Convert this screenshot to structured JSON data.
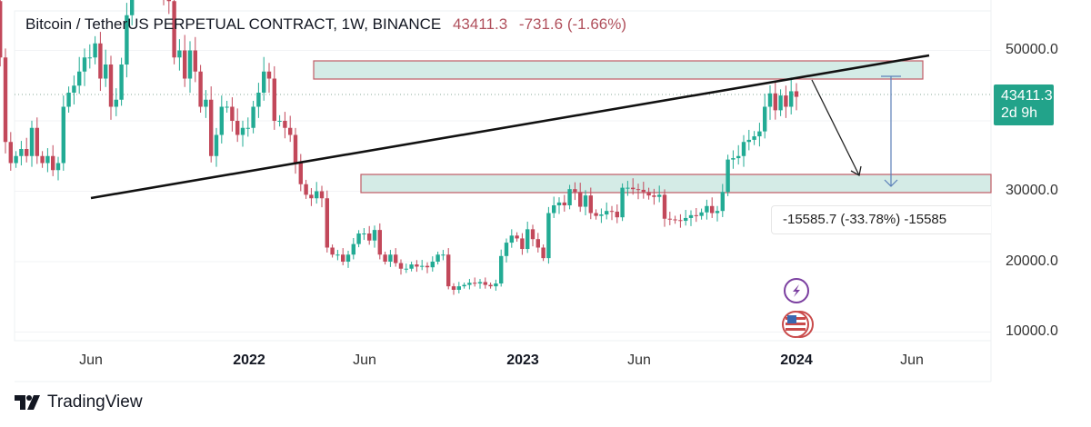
{
  "header": {
    "symbol": "Bitcoin / TetherUS PERPETUAL CONTRACT, 1W, BINANCE",
    "price": "43411.3",
    "change": "-731.6 (-1.66%)"
  },
  "price_badge": {
    "price": "43411.3",
    "countdown": "2d 9h"
  },
  "measure_label": "-15585.7 (-33.78%) -15585",
  "brand": "TradingView",
  "icons": [
    "lightning-event-icon",
    "us-flag-economic-event-icon"
  ],
  "colors": {
    "up": "#22ab94",
    "down": "#c2485a",
    "zone_fill": "#d4ebe6",
    "zone_border": "#c05a64"
  },
  "chart_data": {
    "type": "candlestick",
    "title": "Bitcoin / TetherUS PERPETUAL CONTRACT, 1W, BINANCE",
    "interval": "1W",
    "y_ticks": [
      "50000.0",
      "30000.0",
      "20000.0",
      "10000.0"
    ],
    "x_ticks": [
      {
        "label": "Jun",
        "bold": false
      },
      {
        "label": "2022",
        "bold": true
      },
      {
        "label": "Jun",
        "bold": false
      },
      {
        "label": "2023",
        "bold": true
      },
      {
        "label": "Jun",
        "bold": false
      },
      {
        "label": "2024",
        "bold": true
      },
      {
        "label": "Jun",
        "bold": false
      }
    ],
    "ylim": [
      5000,
      57000
    ],
    "first_open": 50000,
    "weekly_closes": [
      51000,
      61000,
      58000,
      55000,
      57000,
      59000,
      60000,
      56000,
      49000,
      50000,
      58000,
      57000,
      49000,
      37000,
      34000,
      35000,
      36000,
      35000,
      39000,
      35000,
      34000,
      35000,
      33000,
      34000,
      42000,
      44000,
      45000,
      47000,
      49000,
      49000,
      51000,
      46000,
      48000,
      42000,
      43000,
      48000,
      55000,
      60000,
      61000,
      62000,
      61000,
      65000,
      60000,
      59000,
      57000,
      49000,
      50000,
      46000,
      50000,
      47000,
      42000,
      43000,
      35000,
      38000,
      42000,
      42000,
      40000,
      38000,
      39000,
      39000,
      42000,
      44000,
      47000,
      46000,
      40000,
      40000,
      39000,
      38000,
      34000,
      31000,
      29500,
      29000,
      30000,
      29000,
      22000,
      21000,
      21000,
      20000,
      21000,
      22500,
      24000,
      24000,
      23000,
      24500,
      21000,
      20000,
      21000,
      19800,
      19000,
      19000,
      19600,
      19300,
      19400,
      19200,
      20000,
      21000,
      21000,
      16500,
      16000,
      16500,
      16700,
      17000,
      16900,
      17100,
      16700,
      16500,
      16900,
      20800,
      22700,
      23700,
      23300,
      21800,
      24600,
      23200,
      22000,
      20500,
      26900,
      28000,
      28400,
      28000,
      30300,
      29900,
      27800,
      29400,
      26900,
      26500,
      26700,
      27200,
      27100,
      26300,
      30500,
      30500,
      30300,
      30200,
      29900,
      29400,
      29200,
      29500,
      26100,
      26000,
      25900,
      25800,
      26200,
      26600,
      26500,
      27000,
      27900,
      26900,
      27200,
      29900,
      34500,
      34700,
      35000,
      37000,
      37300,
      37800,
      38500,
      42000,
      43900,
      41500,
      43600,
      42000,
      44200,
      43411.3
    ],
    "last_price": 43411.3,
    "drawings": {
      "trendline": {
        "from": {
          "date": "2021-06",
          "price": 28800
        },
        "to": {
          "date": "2024-06",
          "price": 49000
        }
      },
      "upper_zone": {
        "price_low": 47300,
        "price_high": 49800
      },
      "lower_zone": {
        "price_low": 29800,
        "price_high": 32400
      },
      "measure": {
        "from": 43411.3,
        "to": 27825.6,
        "change": -15585.7,
        "percent": -33.78
      }
    }
  }
}
